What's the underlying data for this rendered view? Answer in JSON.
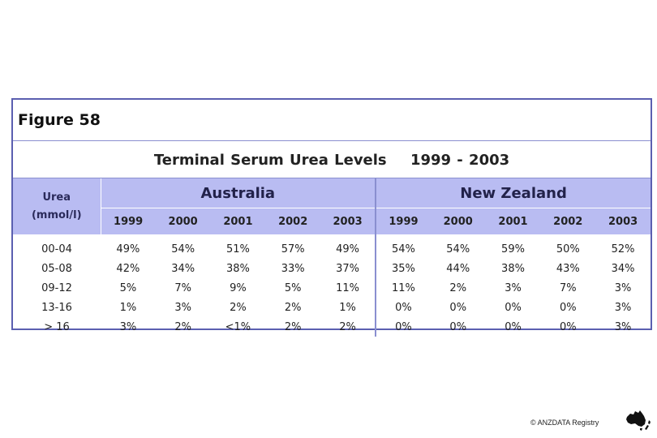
{
  "figure_label": "Figure 58",
  "title": {
    "main": "Terminal Serum Urea Levels",
    "period": "1999 - 2003"
  },
  "unit_header": {
    "line1": "Urea",
    "line2": "(mmol/l)"
  },
  "countries": [
    "Australia",
    "New Zealand"
  ],
  "years": [
    "1999",
    "2000",
    "2001",
    "2002",
    "2003"
  ],
  "rows": [
    {
      "label": "00-04",
      "values": [
        "49%",
        "54%",
        "51%",
        "57%",
        "49%",
        "54%",
        "54%",
        "59%",
        "50%",
        "52%"
      ]
    },
    {
      "label": "05-08",
      "values": [
        "42%",
        "34%",
        "38%",
        "33%",
        "37%",
        "35%",
        "44%",
        "38%",
        "43%",
        "34%"
      ]
    },
    {
      "label": "09-12",
      "values": [
        "5%",
        "7%",
        "9%",
        "5%",
        "11%",
        "11%",
        "2%",
        "3%",
        "7%",
        "3%"
      ]
    },
    {
      "label": "13-16",
      "values": [
        "1%",
        "3%",
        "2%",
        "2%",
        "1%",
        "0%",
        "0%",
        "0%",
        "0%",
        "3%"
      ]
    },
    {
      "label": "> 16",
      "values": [
        "3%",
        "2%",
        "<1%",
        "2%",
        "2%",
        "0%",
        "0%",
        "0%",
        "0%",
        "3%"
      ]
    }
  ],
  "copyright": "© ANZDATA Registry",
  "colors": {
    "header_bg": "#b9bcf2",
    "border": "#5b5fb0"
  }
}
